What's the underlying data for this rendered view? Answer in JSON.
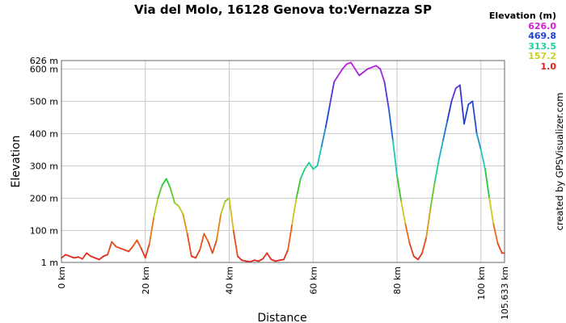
{
  "chart_data": {
    "type": "line",
    "title": "Via del Molo, 16128 Genova to:Vernazza SP",
    "xlabel": "Distance",
    "ylabel": "Elevation",
    "credit": "created by GPSVisualizer.com",
    "xlim": [
      0,
      105.633
    ],
    "ylim": [
      1,
      626
    ],
    "x_ticks": [
      "0 km",
      "20 km",
      "40 km",
      "60 km",
      "80 km",
      "100 km",
      "105.633 km"
    ],
    "x_tick_values": [
      0,
      20,
      40,
      60,
      80,
      100,
      105.633
    ],
    "y_ticks": [
      "1 m",
      "100 m",
      "200 m",
      "300 m",
      "400 m",
      "500 m",
      "600 m",
      "626 m"
    ],
    "y_tick_values": [
      1,
      100,
      200,
      300,
      400,
      500,
      600,
      626
    ],
    "legend": {
      "title": "Elevation (m)",
      "entries": [
        "626.0",
        "469.8",
        "313.5",
        "157.2",
        "1.0"
      ],
      "colors": [
        "#d020d0",
        "#2040d0",
        "#20d0a0",
        "#c8d020",
        "#e02020"
      ]
    },
    "series": [
      {
        "name": "Elevation",
        "x": [
          0,
          1,
          2,
          3,
          4,
          5,
          6,
          7,
          8,
          9,
          10,
          11,
          12,
          13,
          14,
          15,
          16,
          17,
          18,
          19,
          20,
          21,
          22,
          23,
          24,
          25,
          26,
          27,
          28,
          29,
          30,
          31,
          32,
          33,
          34,
          35,
          36,
          37,
          38,
          39,
          40,
          41,
          42,
          43,
          44,
          45,
          46,
          47,
          48,
          49,
          50,
          51,
          52,
          53,
          54,
          55,
          56,
          57,
          58,
          59,
          60,
          61,
          62,
          63,
          64,
          65,
          66,
          67,
          68,
          69,
          70,
          71,
          72,
          73,
          74,
          75,
          76,
          77,
          78,
          79,
          80,
          81,
          82,
          83,
          84,
          85,
          86,
          87,
          88,
          89,
          90,
          91,
          92,
          93,
          94,
          95,
          96,
          97,
          98,
          99,
          100,
          101,
          102,
          103,
          104,
          105,
          105.633
        ],
        "values": [
          15,
          25,
          20,
          15,
          18,
          12,
          30,
          20,
          15,
          10,
          20,
          25,
          65,
          50,
          45,
          40,
          35,
          50,
          70,
          45,
          15,
          60,
          140,
          200,
          240,
          260,
          230,
          185,
          175,
          150,
          90,
          20,
          15,
          40,
          90,
          65,
          30,
          70,
          150,
          190,
          200,
          100,
          20,
          8,
          5,
          3,
          8,
          5,
          12,
          30,
          10,
          5,
          8,
          10,
          40,
          120,
          200,
          260,
          290,
          310,
          290,
          300,
          360,
          420,
          490,
          560,
          580,
          600,
          615,
          620,
          600,
          580,
          590,
          600,
          605,
          610,
          600,
          560,
          480,
          380,
          270,
          190,
          120,
          60,
          20,
          10,
          30,
          80,
          170,
          250,
          320,
          380,
          440,
          500,
          540,
          550,
          430,
          490,
          500,
          400,
          350,
          290,
          200,
          120,
          60,
          30,
          30
        ]
      }
    ]
  }
}
